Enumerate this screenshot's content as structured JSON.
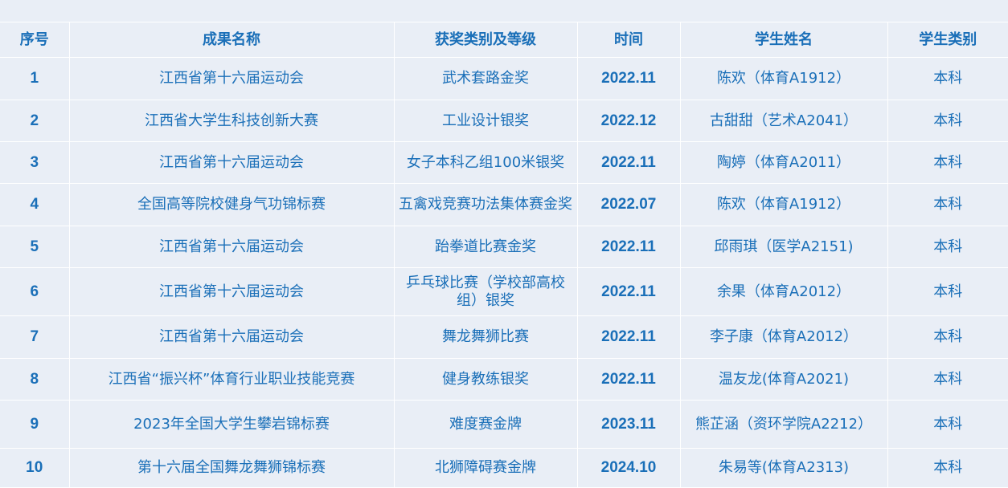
{
  "colors": {
    "background": "#e9eef6",
    "text": "#1a6fb8",
    "grid": "#ffffff"
  },
  "table": {
    "headers": [
      "序号",
      "成果名称",
      "获奖类别及等级",
      "时间",
      "学生姓名",
      "学生类别"
    ],
    "rows": [
      [
        "1",
        "江西省第十六届运动会",
        "武术套路金奖",
        "2022.11",
        "陈欢（体育A1912）",
        "本科"
      ],
      [
        "2",
        "江西省大学生科技创新大赛",
        "工业设计银奖",
        "2022.12",
        "古甜甜（艺术A2041）",
        "本科"
      ],
      [
        "3",
        "江西省第十六届运动会",
        "女子本科乙组100米银奖",
        "2022.11",
        "陶婷（体育A2011）",
        "本科"
      ],
      [
        "4",
        "全国高等院校健身气功锦标赛",
        "五禽戏竞赛功法集体赛金奖",
        "2022.07",
        "陈欢（体育A1912）",
        "本科"
      ],
      [
        "5",
        "江西省第十六届运动会",
        "跆拳道比赛金奖",
        "2022.11",
        "邱雨琪（医学A2151)",
        "本科"
      ],
      [
        "6",
        "江西省第十六届运动会",
        "乒乓球比赛（学校部高校组）银奖",
        "2022.11",
        "余果（体育A2012）",
        "本科"
      ],
      [
        "7",
        "江西省第十六届运动会",
        "舞龙舞狮比赛",
        "2022.11",
        "李子康（体育A2012）",
        "本科"
      ],
      [
        "8",
        "江西省“振兴杯”体育行业职业技能竞赛",
        "健身教练银奖",
        "2022.11",
        "温友龙(体育A2021)",
        "本科"
      ],
      [
        "9",
        "2023年全国大学生攀岩锦标赛",
        "难度赛金牌",
        "2023.11",
        "熊芷涵（资环学院A2212）",
        "本科"
      ],
      [
        "10",
        "第十六届全国舞龙舞狮锦标赛",
        "北狮障碍赛金牌",
        "2024.10",
        "朱易等(体育A2313)",
        "本科"
      ]
    ]
  }
}
